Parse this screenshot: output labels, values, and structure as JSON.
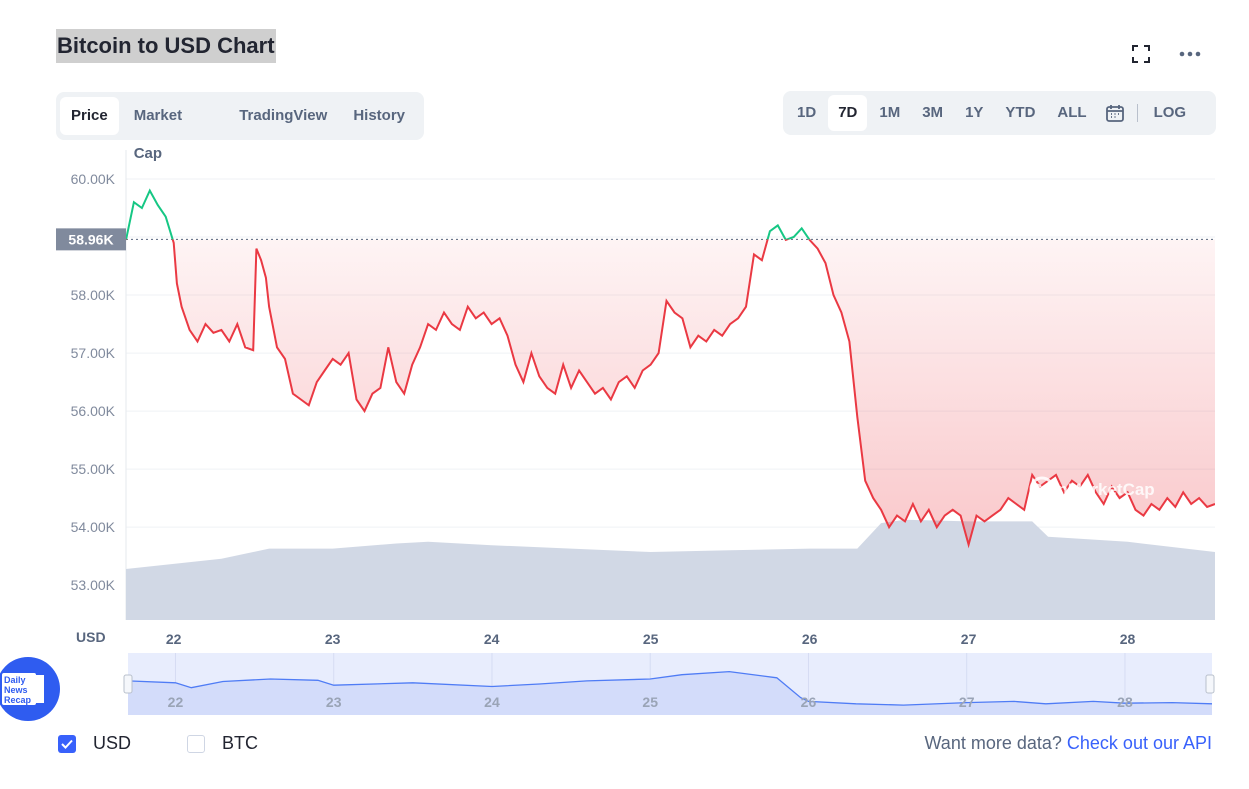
{
  "header": {
    "title": "Bitcoin to USD Chart"
  },
  "tabs": [
    {
      "label": "Price",
      "active": true
    },
    {
      "label": "Market Cap",
      "active": false
    },
    {
      "label": "TradingView",
      "active": false
    },
    {
      "label": "History",
      "active": false
    }
  ],
  "ranges": [
    {
      "label": "1D",
      "active": false
    },
    {
      "label": "7D",
      "active": true
    },
    {
      "label": "1M",
      "active": false
    },
    {
      "label": "3M",
      "active": false
    },
    {
      "label": "1Y",
      "active": false
    },
    {
      "label": "YTD",
      "active": false
    },
    {
      "label": "ALL",
      "active": false
    }
  ],
  "log_label": "LOG",
  "legend": {
    "usd": "USD",
    "btc": "BTC",
    "usd_checked": true,
    "btc_checked": false
  },
  "api": {
    "prefix": "Want more data?",
    "link": "Check out our API"
  },
  "badge": {
    "line1": "Daily",
    "line2": "News",
    "line3": "Recap"
  },
  "watermark": "CoinMarketCap",
  "colors": {
    "up": "#16c784",
    "down": "#ea3943",
    "accent": "#3861fb",
    "volume": "#cfd6e4"
  },
  "chart_data": {
    "type": "line",
    "title": "Bitcoin to USD Chart",
    "ylabel": "USD",
    "ylim": [
      52400,
      60500
    ],
    "yticks": [
      "60.00K",
      "59.00K",
      "58.00K",
      "57.00K",
      "56.00K",
      "55.00K",
      "54.00K",
      "53.00K"
    ],
    "ytick_values": [
      60000,
      59000,
      58000,
      57000,
      56000,
      55000,
      54000,
      53000
    ],
    "xticks": [
      "22",
      "23",
      "24",
      "25",
      "26",
      "27",
      "28"
    ],
    "xtick_days": [
      22,
      23,
      24,
      25,
      26,
      27,
      28
    ],
    "xlim": [
      21.7,
      28.55
    ],
    "reference_label": "58.96K",
    "reference_value": 58960,
    "grid": true,
    "series": [
      {
        "name": "Price",
        "x": [
          21.7,
          21.75,
          21.8,
          21.85,
          21.9,
          21.95,
          22.0,
          22.02,
          22.05,
          22.1,
          22.15,
          22.2,
          22.25,
          22.3,
          22.35,
          22.4,
          22.45,
          22.5,
          22.52,
          22.55,
          22.58,
          22.6,
          22.65,
          22.7,
          22.75,
          22.8,
          22.85,
          22.9,
          22.95,
          23.0,
          23.05,
          23.1,
          23.15,
          23.2,
          23.25,
          23.3,
          23.35,
          23.4,
          23.45,
          23.5,
          23.55,
          23.6,
          23.65,
          23.7,
          23.75,
          23.8,
          23.85,
          23.9,
          23.95,
          24.0,
          24.05,
          24.1,
          24.15,
          24.2,
          24.25,
          24.3,
          24.35,
          24.4,
          24.45,
          24.5,
          24.55,
          24.6,
          24.65,
          24.7,
          24.75,
          24.8,
          24.85,
          24.9,
          24.95,
          25.0,
          25.05,
          25.1,
          25.15,
          25.2,
          25.25,
          25.3,
          25.35,
          25.4,
          25.45,
          25.5,
          25.55,
          25.6,
          25.65,
          25.7,
          25.75,
          25.8,
          25.85,
          25.9,
          25.95,
          26.0,
          26.05,
          26.1,
          26.15,
          26.2,
          26.25,
          26.3,
          26.35,
          26.4,
          26.45,
          26.5,
          26.55,
          26.6,
          26.65,
          26.7,
          26.75,
          26.8,
          26.85,
          26.9,
          26.95,
          27.0,
          27.05,
          27.1,
          27.15,
          27.2,
          27.25,
          27.3,
          27.35,
          27.4,
          27.45,
          27.5,
          27.55,
          27.6,
          27.65,
          27.7,
          27.75,
          27.8,
          27.85,
          27.9,
          27.95,
          28.0,
          28.05,
          28.1,
          28.15,
          28.2,
          28.25,
          28.3,
          28.35,
          28.4,
          28.45,
          28.5,
          28.55
        ],
        "values": [
          58950,
          59600,
          59500,
          59800,
          59550,
          59350,
          58900,
          58200,
          57800,
          57400,
          57200,
          57500,
          57350,
          57400,
          57200,
          57500,
          57100,
          57050,
          58800,
          58600,
          58300,
          57800,
          57100,
          56900,
          56300,
          56200,
          56100,
          56500,
          56700,
          56900,
          56800,
          57000,
          56200,
          56000,
          56300,
          56400,
          57100,
          56500,
          56300,
          56800,
          57100,
          57500,
          57400,
          57700,
          57500,
          57400,
          57800,
          57600,
          57700,
          57500,
          57600,
          57300,
          56800,
          56500,
          57000,
          56600,
          56400,
          56300,
          56800,
          56400,
          56700,
          56500,
          56300,
          56400,
          56200,
          56500,
          56600,
          56400,
          56700,
          56800,
          57000,
          57900,
          57700,
          57600,
          57100,
          57300,
          57200,
          57400,
          57300,
          57500,
          57600,
          57800,
          58700,
          58600,
          59100,
          59200,
          58950,
          59000,
          59150,
          58950,
          58800,
          58550,
          58000,
          57700,
          57200,
          55900,
          54800,
          54500,
          54300,
          54000,
          54200,
          54100,
          54400,
          54100,
          54300,
          54000,
          54200,
          54300,
          54200,
          53700,
          54200,
          54100,
          54200,
          54300,
          54500,
          54400,
          54300,
          54900,
          54700,
          54800,
          54900,
          54600,
          54800,
          54700,
          54900,
          54600,
          54400,
          54700,
          54500,
          54600,
          54300,
          54200,
          54400,
          54300,
          54500,
          54350,
          54600,
          54400,
          54500,
          54350,
          54400
        ]
      },
      {
        "name": "Volume",
        "x": [
          21.7,
          22.0,
          22.3,
          22.6,
          23.0,
          23.4,
          23.6,
          24.0,
          24.5,
          25.0,
          25.5,
          26.0,
          26.3,
          26.45,
          26.6,
          27.0,
          27.4,
          27.5,
          28.0,
          28.55
        ],
        "values": [
          30,
          33,
          36,
          42,
          42,
          45,
          46,
          44,
          42,
          40,
          41,
          42,
          42,
          57,
          59,
          58,
          58,
          49,
          46,
          40
        ]
      },
      {
        "name": "Navigator",
        "x": [
          21.7,
          22.0,
          22.1,
          22.3,
          22.6,
          22.9,
          23.0,
          23.5,
          24.0,
          24.3,
          24.6,
          25.0,
          25.2,
          25.5,
          25.8,
          25.95,
          26.0,
          26.3,
          26.6,
          27.0,
          27.3,
          27.5,
          27.8,
          28.0,
          28.3,
          28.55
        ],
        "values": [
          55,
          52,
          44,
          54,
          58,
          56,
          48,
          52,
          46,
          50,
          55,
          58,
          65,
          70,
          60,
          28,
          22,
          18,
          16,
          20,
          22,
          18,
          22,
          19,
          20,
          18
        ]
      }
    ]
  }
}
